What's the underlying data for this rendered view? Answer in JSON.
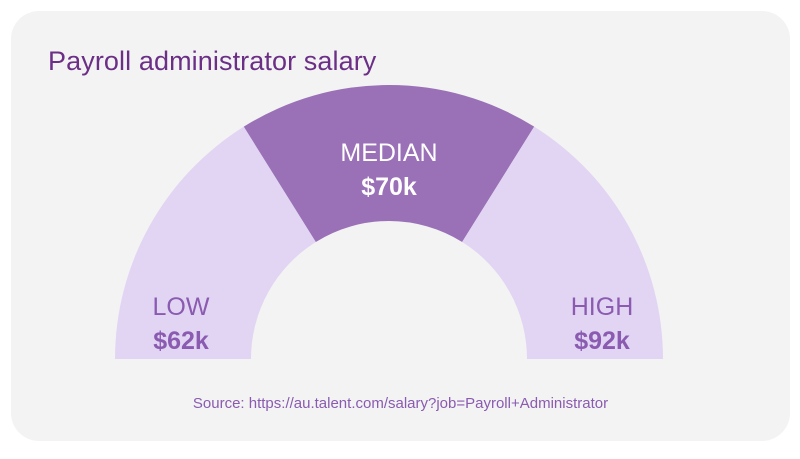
{
  "title": "Payroll administrator salary",
  "source": "Source: https://au.talent.com/salary?job=Payroll+Administrator",
  "colors": {
    "background": "#f3f3f3",
    "title": "#6b2f86",
    "outer_segment": "#e2d5f3",
    "median_segment": "#9a70b7",
    "outer_label": "#8a5bb0",
    "median_label": "#ffffff",
    "source": "#8a5bb0"
  },
  "chart_data": {
    "type": "pie",
    "variant": "semicircle-gauge",
    "title": "Payroll administrator salary",
    "unit": "AUD (thousands)",
    "segments": [
      {
        "key": "low",
        "label": "LOW",
        "value_label": "$62k",
        "value": 62,
        "highlight": false
      },
      {
        "key": "median",
        "label": "MEDIAN",
        "value_label": "$70k",
        "value": 70,
        "highlight": true
      },
      {
        "key": "high",
        "label": "HIGH",
        "value_label": "$92k",
        "value": 92,
        "highlight": false
      }
    ]
  }
}
